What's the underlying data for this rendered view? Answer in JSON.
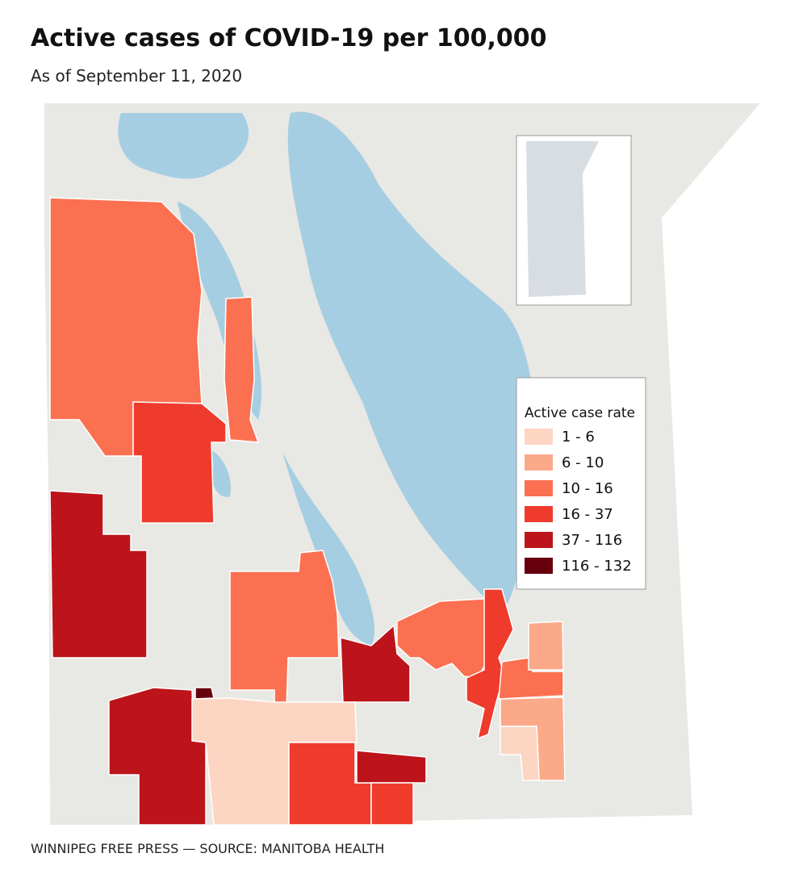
{
  "header": {
    "title": "Active cases of COVID-19 per 100,000",
    "subtitle": "As of September 11, 2020"
  },
  "legend": {
    "title": "Active case rate",
    "items": [
      {
        "label": "1 - 6",
        "color": "#fdd5c3"
      },
      {
        "label": "6 - 10",
        "color": "#fca98a"
      },
      {
        "label": "10 - 16",
        "color": "#fb7050"
      },
      {
        "label": "16 - 37",
        "color": "#ef3b2c"
      },
      {
        "label": "37 - 116",
        "color": "#bc141a"
      },
      {
        "label": "116 - 132",
        "color": "#67000d"
      }
    ]
  },
  "footer": {
    "source": "WINNIPEG FREE PRESS — SOURCE: MANITOBA HEALTH"
  }
}
